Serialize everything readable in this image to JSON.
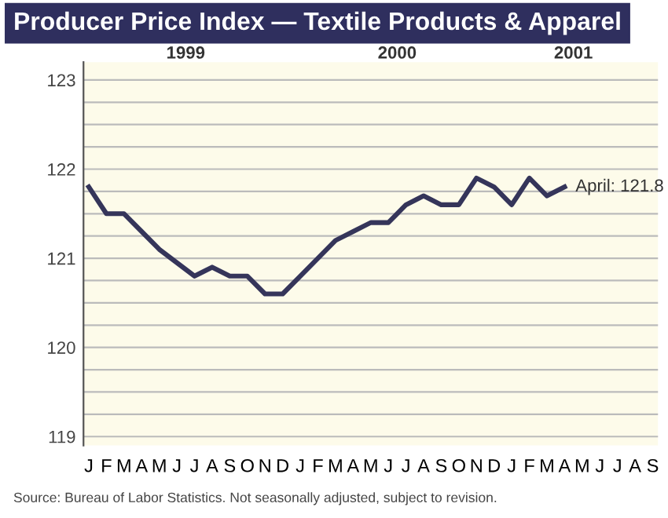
{
  "chart_data": {
    "type": "line",
    "title": "Producer Price Index — Textile Products & Apparel",
    "categories": [
      "J",
      "F",
      "M",
      "A",
      "M",
      "J",
      "J",
      "A",
      "S",
      "O",
      "N",
      "D",
      "J",
      "F",
      "M",
      "A",
      "M",
      "J",
      "J",
      "A",
      "S",
      "O",
      "N",
      "D",
      "J",
      "F",
      "M",
      "A",
      "M",
      "J",
      "J",
      "A",
      "S"
    ],
    "series": [
      {
        "color": "#35355a",
        "values": [
          121.8,
          121.5,
          121.5,
          121.3,
          121.1,
          120.95,
          120.8,
          120.9,
          120.8,
          120.8,
          120.6,
          120.6,
          120.8,
          121.0,
          121.2,
          121.3,
          121.4,
          121.4,
          121.6,
          121.7,
          121.6,
          121.6,
          121.9,
          121.8,
          121.6,
          121.9,
          121.7,
          121.8,
          null,
          null,
          null,
          null,
          null
        ],
        "value_labels": [
          null,
          null,
          null,
          null,
          null,
          null,
          null,
          null,
          null,
          null,
          null,
          null,
          null,
          null,
          null,
          null,
          null,
          null,
          null,
          null,
          null,
          null,
          null,
          null,
          null,
          null,
          null,
          "April: 121.8",
          null,
          null,
          null,
          null,
          null
        ]
      }
    ],
    "ylim": [
      118.9,
      123.2
    ],
    "yticks": [
      119,
      {
        "value": 119.25,
        "label": null
      },
      {
        "value": 119.5,
        "label": null
      },
      {
        "value": 119.75,
        "label": null
      },
      120,
      {
        "value": 120.25,
        "label": null
      },
      {
        "value": 120.5,
        "label": null
      },
      {
        "value": 120.75,
        "label": null
      },
      121,
      {
        "value": 121.25,
        "label": null
      },
      {
        "value": 121.5,
        "label": null
      },
      {
        "value": 121.75,
        "label": null
      },
      122,
      {
        "value": 122.25,
        "label": null
      },
      {
        "value": 122.5,
        "label": null
      },
      {
        "value": 122.75,
        "label": null
      },
      123
    ],
    "grid": "y",
    "legend": false,
    "marker": "none",
    "line_style": "solid",
    "annotations": [
      "1999",
      "2000",
      "2001",
      "Source: Bureau of Labor Statistics. Not seasonally adjusted, subject to revision."
    ]
  }
}
